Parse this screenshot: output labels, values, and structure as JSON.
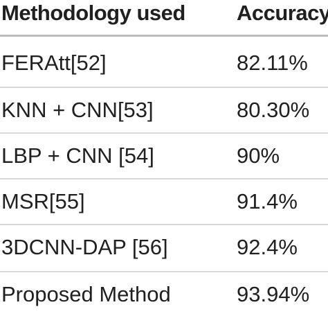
{
  "table": {
    "headers": [
      "Methodology used",
      "Accuracy"
    ],
    "rows": [
      [
        "FERAtt[52]",
        "82.11%"
      ],
      [
        "KNN + CNN[53]",
        "80.30%"
      ],
      [
        "LBP + CNN [54]",
        "90%"
      ],
      [
        "MSR[55]",
        "91.4%"
      ],
      [
        "3DCNN-DAP [56]",
        "92.4%"
      ],
      [
        "Proposed Method",
        "93.94%"
      ]
    ]
  }
}
